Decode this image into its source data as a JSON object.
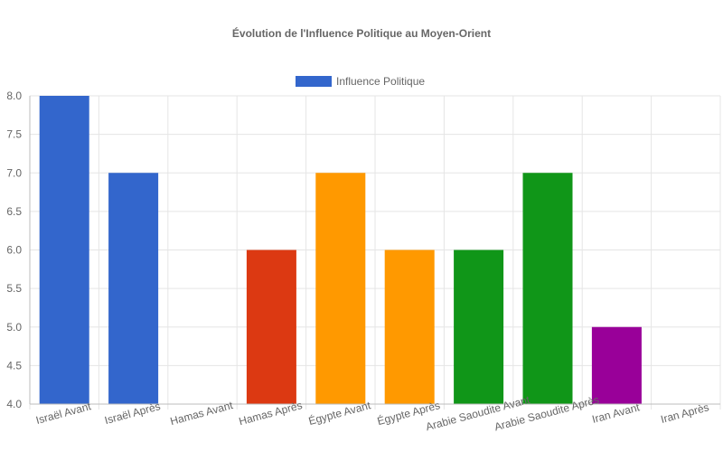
{
  "chart_data": {
    "type": "bar",
    "title": "Évolution de l'Influence Politique au Moyen-Orient",
    "categories": [
      "Israël Avant",
      "Israël Après",
      "Hamas Avant",
      "Hamas Après",
      "Égypte Avant",
      "Égypte Après",
      "Arabie Saoudite Avant",
      "Arabie Saoudite Après",
      "Iran Avant",
      "Iran Après"
    ],
    "series": [
      {
        "name": "Influence Politique",
        "values": [
          8,
          7,
          4,
          6,
          7,
          6,
          6,
          7,
          5,
          4
        ],
        "colors": [
          "#3366cc",
          "#3366cc",
          "#dc3912",
          "#dc3912",
          "#ff9900",
          "#ff9900",
          "#109618",
          "#109618",
          "#990099",
          "#990099"
        ]
      }
    ],
    "legend_color": "#3366cc",
    "yticks": [
      "8.0",
      "7.5",
      "7.0",
      "6.5",
      "6.0",
      "5.5",
      "5.0",
      "4.5",
      "4.0"
    ],
    "ylim": [
      4,
      8
    ],
    "ystep": 0.5,
    "grid": true,
    "legend_position": "top"
  }
}
